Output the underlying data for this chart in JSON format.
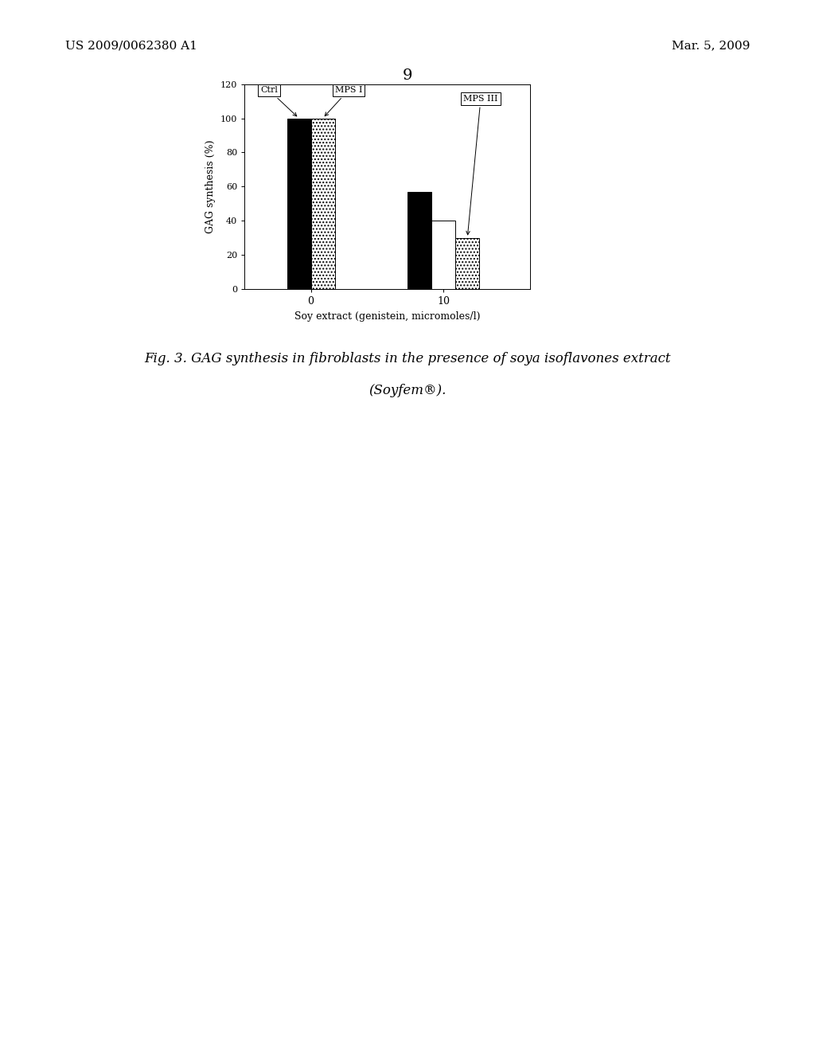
{
  "title": "9",
  "ylabel": "GAG synthesis (%)",
  "xlabel": "Soy extract (genistein, micromoles/l)",
  "ylim": [
    0,
    120
  ],
  "yticks": [
    0,
    20,
    40,
    60,
    80,
    100,
    120
  ],
  "xtick_labels": [
    "0",
    "10"
  ],
  "bar_width": 0.18,
  "groups": [
    {
      "bars": [
        {
          "label": "Ctrl",
          "value": 100,
          "color": "black",
          "hatch": ""
        },
        {
          "label": "MPS I (0)",
          "value": 100,
          "color": "white",
          "hatch": "...."
        }
      ]
    },
    {
      "bars": [
        {
          "label": "MPS I (10)",
          "value": 57,
          "color": "black",
          "hatch": ""
        },
        {
          "label": "MPS III white",
          "value": 40,
          "color": "white",
          "hatch": ""
        },
        {
          "label": "MPS III stippled",
          "value": 30,
          "color": "white",
          "hatch": "...."
        }
      ]
    }
  ],
  "fig_caption": "Fig. 3. GAG synthesis in fibroblasts in the presence of soya isoflavones extract",
  "fig_caption2": "(Soyfem®).",
  "header_left": "US 2009/0062380 A1",
  "header_right": "Mar. 5, 2009",
  "background_color": "#ffffff"
}
